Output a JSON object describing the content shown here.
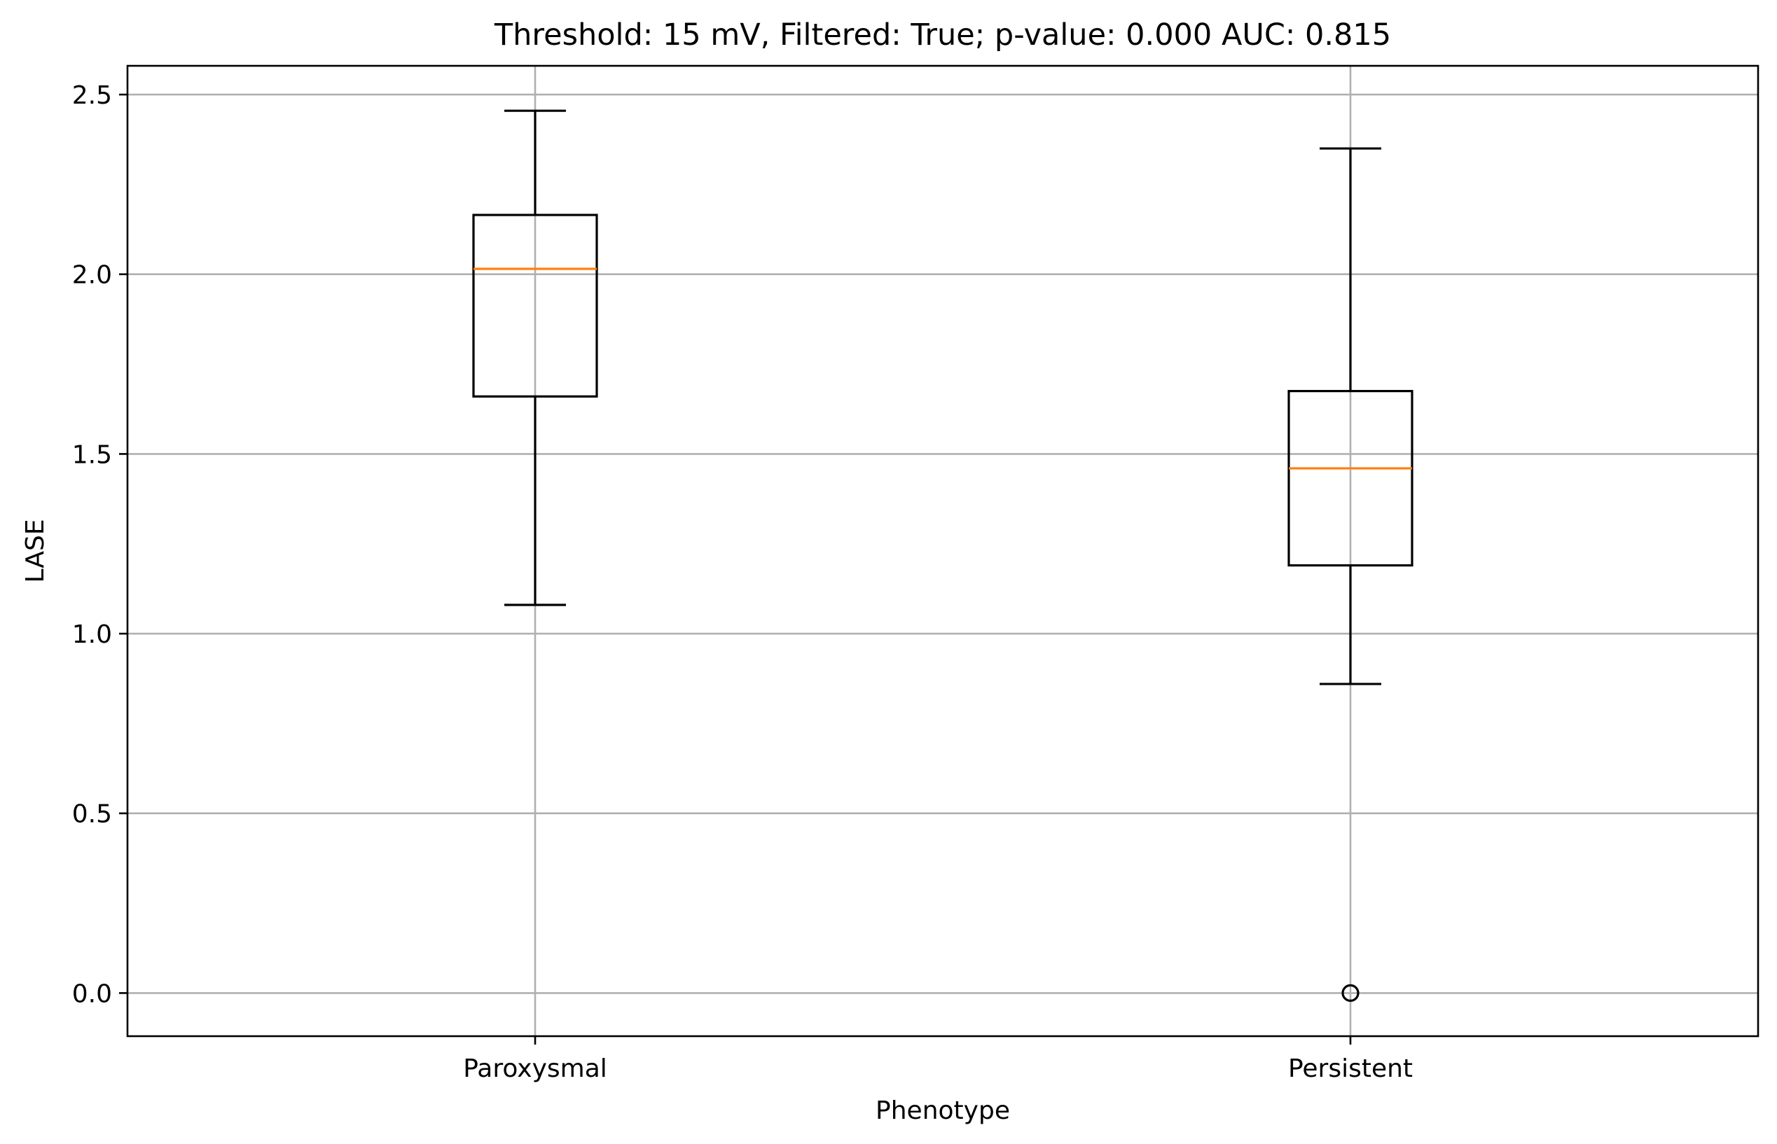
{
  "chart_data": {
    "type": "box",
    "title": "Threshold: 15 mV, Filtered: True; p-value: 0.000 AUC: 0.815",
    "xlabel": "Phenotype",
    "ylabel": "LASE",
    "ylim": [
      -0.12,
      2.58
    ],
    "yticks": [
      "0.0",
      "0.5",
      "1.0",
      "1.5",
      "2.0",
      "2.5"
    ],
    "ytick_values": [
      0.0,
      0.5,
      1.0,
      1.5,
      2.0,
      2.5
    ],
    "grid": true,
    "categories": [
      "Paroxysmal",
      "Persistent"
    ],
    "boxes": [
      {
        "category": "Paroxysmal",
        "whisker_low": 1.08,
        "q1": 1.66,
        "median": 2.015,
        "q3": 2.165,
        "whisker_high": 2.455,
        "fliers": []
      },
      {
        "category": "Persistent",
        "whisker_low": 0.86,
        "q1": 1.19,
        "median": 1.46,
        "q3": 1.675,
        "whisker_high": 2.35,
        "fliers": [
          0.0
        ]
      }
    ],
    "colors": {
      "box": "#000000",
      "median": "#ff7f0e",
      "grid": "#b0b0b0"
    }
  }
}
